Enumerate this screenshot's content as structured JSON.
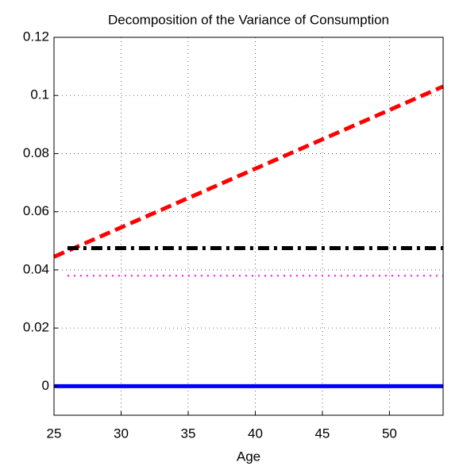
{
  "chart_data": {
    "type": "line",
    "title": "Decomposition of the Variance of Consumption",
    "x_label": "Age",
    "xlim": [
      25,
      54
    ],
    "xticks": [
      25,
      30,
      35,
      40,
      45,
      50
    ],
    "ylim": [
      -0.01,
      0.12
    ],
    "yticks": [
      0,
      0.02,
      0.04,
      0.06,
      0.08,
      0.1,
      0.12
    ],
    "grid": true,
    "series": [
      {
        "color": "#ff0000",
        "style": "dashed",
        "x": [
          25,
          30,
          35,
          40,
          45,
          50,
          54
        ],
        "values": [
          0.0445,
          0.0546,
          0.0647,
          0.0748,
          0.0849,
          0.095,
          0.1031
        ]
      },
      {
        "color": "#000000",
        "style": "dashdot",
        "x": [
          26,
          54
        ],
        "values": [
          0.0475,
          0.0475
        ]
      },
      {
        "color": "#ff00ff",
        "style": "dotted",
        "x": [
          26,
          54
        ],
        "values": [
          0.038,
          0.038
        ]
      },
      {
        "color": "#0000ff",
        "style": "solid",
        "x": [
          25,
          54
        ],
        "values": [
          0,
          0
        ]
      }
    ]
  }
}
